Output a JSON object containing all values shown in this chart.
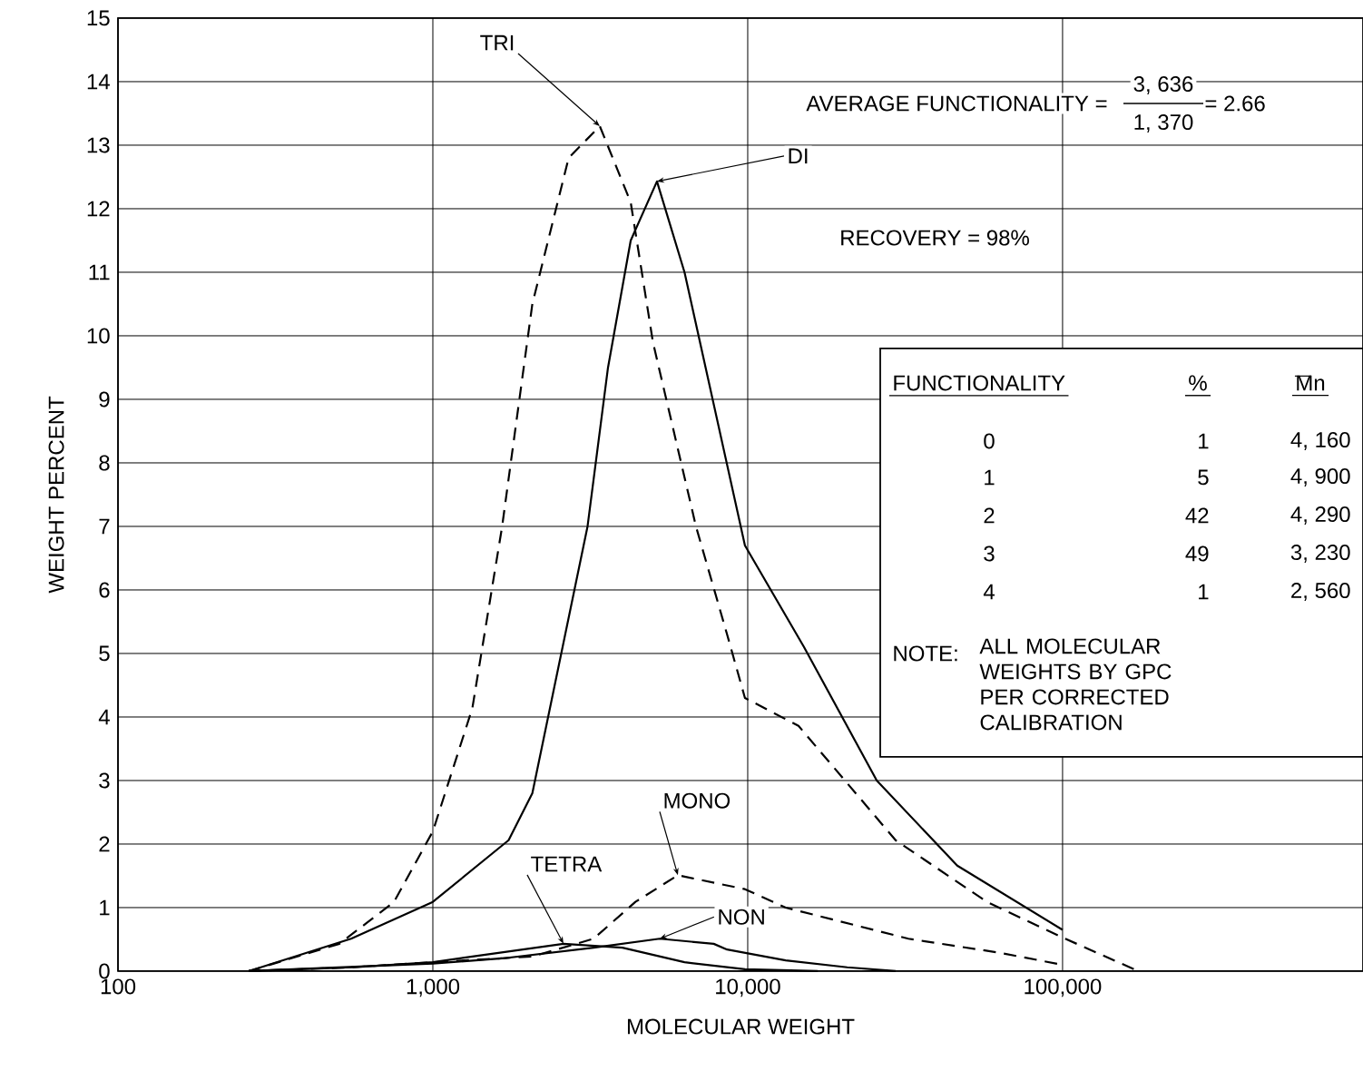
{
  "chart_data": {
    "type": "line",
    "xlabel": "MOLECULAR WEIGHT",
    "ylabel": "WEIGHT PERCENT",
    "log": "x",
    "grid": true,
    "xlim": [
      100,
      900000
    ],
    "ylim": [
      0,
      15
    ],
    "xticks": [
      100,
      {
        "value": 1000,
        "label": "1,000"
      },
      {
        "value": 10000,
        "label": "10,000"
      },
      {
        "value": 100000,
        "label": "100,000"
      }
    ],
    "yticks": [
      0,
      1,
      2,
      3,
      4,
      5,
      6,
      7,
      8,
      9,
      10,
      11,
      12,
      13,
      14,
      15
    ],
    "series": [
      {
        "name": "TRI",
        "color": "#000000",
        "line_style": "dashed",
        "x": [
          260,
          505,
          753,
          1000,
          1335,
          1660,
          2070,
          2700,
          3390,
          4250,
          5000,
          6850,
          8600,
          9800,
          14500,
          29500,
          57500,
          102000,
          174000
        ],
        "values": [
          0,
          0.43,
          1.09,
          2.2,
          4.14,
          7.0,
          10.5,
          12.8,
          13.3,
          12.1,
          9.9,
          7.0,
          5.3,
          4.3,
          3.86,
          2.06,
          1.09,
          0.51,
          0
        ]
      },
      {
        "name": "DI",
        "color": "#000000",
        "line_style": "solid",
        "x": [
          260,
          550,
          1000,
          1740,
          2070,
          3100,
          3600,
          4250,
          5150,
          6300,
          9800,
          15100,
          25700,
          46300,
          100000
        ],
        "values": [
          0,
          0.51,
          1.09,
          2.06,
          2.8,
          7.0,
          9.5,
          11.5,
          12.43,
          11.0,
          6.7,
          5.1,
          3.0,
          1.66,
          0.65
        ]
      },
      {
        "name": "MONO",
        "color": "#000000",
        "line_style": "dashed",
        "x": [
          260,
          550,
          1000,
          2070,
          3240,
          4400,
          6000,
          9800,
          13200,
          32400,
          63000,
          100000
        ],
        "values": [
          0,
          0.06,
          0.14,
          0.23,
          0.51,
          1.09,
          1.51,
          1.29,
          1.0,
          0.51,
          0.29,
          0.1
        ]
      },
      {
        "name": "TETRA",
        "color": "#000000",
        "line_style": "solid",
        "x": [
          260,
          550,
          1000,
          1335,
          2600,
          4000,
          6300,
          9800,
          16700
        ],
        "values": [
          0,
          0.06,
          0.14,
          0.23,
          0.43,
          0.37,
          0.14,
          0.03,
          0
        ]
      },
      {
        "name": "NON",
        "color": "#000000",
        "line_style": "solid",
        "x": [
          260,
          1000,
          1660,
          3240,
          5250,
          7800,
          8600,
          13200,
          20700,
          29500
        ],
        "values": [
          0,
          0.12,
          0.2,
          0.37,
          0.51,
          0.43,
          0.34,
          0.17,
          0.06,
          0
        ]
      }
    ],
    "annotations": [
      "AVERAGE FUNCTIONALITY =",
      "3, 636",
      "1, 370",
      "= 2.66",
      "RECOVERY = 98%",
      "FUNCTIONALITY",
      "%",
      "Mn",
      "0",
      "1",
      "4, 160",
      "1",
      "5",
      "4, 900",
      "2",
      "42",
      "4, 290",
      "3",
      "49",
      "3, 230",
      "4",
      "1",
      "2, 560",
      "NOTE:",
      "ALL MOLECULAR WEIGHTS BY GPC PER CORRECTED CALIBRATION"
    ]
  }
}
